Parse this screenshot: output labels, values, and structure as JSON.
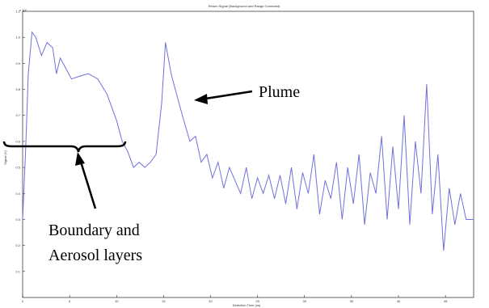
{
  "chart_data": {
    "type": "line",
    "title": "Return Signal (Background and Range Corrected)",
    "xlabel": "Detection Time (us)",
    "ylabel": "Signal (V)",
    "exponent_label": "x 10^",
    "x_ticks": [
      "0",
      "5",
      "10",
      "15",
      "20",
      "25",
      "30",
      "35",
      "40",
      "45"
    ],
    "y_ticks": [
      "1.1",
      "1.0",
      "0.9",
      "0.8",
      "0.7",
      "0.6",
      "0.5",
      "0.4",
      "0.3",
      "0.2",
      "0.1"
    ],
    "xlim": [
      0,
      48
    ],
    "ylim": [
      0,
      1.1
    ],
    "grid": false,
    "series": [
      {
        "color": "#7070dd",
        "x": [
          0,
          0.3,
          0.6,
          1.0,
          1.4,
          2.0,
          2.6,
          3.2,
          3.6,
          4.0,
          4.6,
          5.2,
          6.0,
          7.0,
          8.0,
          9.0,
          10.0,
          10.6,
          11.2,
          11.8,
          12.4,
          13.0,
          13.6,
          14.2,
          14.8,
          15.2,
          15.8,
          16.4,
          17.0,
          17.8,
          18.4,
          19.0,
          19.6,
          20.2,
          20.8,
          21.4,
          22.0,
          22.6,
          23.2,
          23.8,
          24.4,
          25.0,
          25.6,
          26.2,
          26.8,
          27.4,
          28.0,
          28.6,
          29.2,
          29.8,
          30.4,
          31.0,
          31.6,
          32.2,
          32.8,
          33.4,
          34.0,
          34.6,
          35.2,
          35.8,
          36.4,
          37.0,
          37.6,
          38.2,
          38.8,
          39.4,
          40.0,
          40.6,
          41.2,
          41.8,
          42.4,
          43.0,
          43.6,
          44.2,
          44.8,
          45.4,
          46.0,
          46.6,
          47.2,
          48.0
        ],
        "y": [
          0.3,
          0.55,
          0.86,
          1.02,
          1.0,
          0.93,
          0.98,
          0.96,
          0.86,
          0.92,
          0.88,
          0.84,
          0.85,
          0.86,
          0.84,
          0.78,
          0.68,
          0.6,
          0.56,
          0.5,
          0.52,
          0.5,
          0.52,
          0.55,
          0.75,
          0.98,
          0.86,
          0.78,
          0.7,
          0.6,
          0.62,
          0.52,
          0.55,
          0.46,
          0.52,
          0.42,
          0.5,
          0.45,
          0.4,
          0.5,
          0.38,
          0.46,
          0.4,
          0.47,
          0.38,
          0.47,
          0.36,
          0.5,
          0.34,
          0.48,
          0.4,
          0.55,
          0.32,
          0.45,
          0.38,
          0.52,
          0.3,
          0.5,
          0.36,
          0.55,
          0.28,
          0.48,
          0.4,
          0.62,
          0.3,
          0.58,
          0.34,
          0.7,
          0.28,
          0.6,
          0.4,
          0.82,
          0.32,
          0.55,
          0.18,
          0.42,
          0.28,
          0.4,
          0.3,
          0.3
        ]
      }
    ],
    "annotations": [
      {
        "text": "Plume",
        "target_x": 15.5,
        "target_y": 0.84
      },
      {
        "text": "Boundary and",
        "line": 1
      },
      {
        "text": "Aerosol layers",
        "line": 2
      }
    ]
  }
}
